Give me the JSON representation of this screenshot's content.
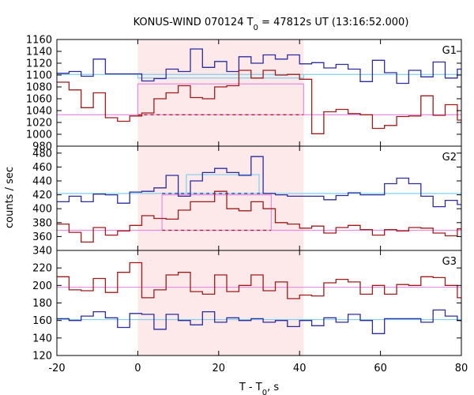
{
  "chart_data": {
    "type": "line",
    "title_main": "KONUS-WIND 070124 T",
    "title_sub": "0",
    "title_rest": " = 47812s UT (13:16:52.000)",
    "xlabel_main": "T - T",
    "xlabel_sub": "0",
    "xlabel_rest": ", s",
    "ylabel": "counts / sec",
    "xlim": [
      -20,
      80
    ],
    "x_ticks": [
      -20,
      0,
      20,
      40,
      60,
      80
    ],
    "x_tick_labels": [
      "-20",
      "0",
      "20",
      "40",
      "60",
      "80"
    ],
    "highlight_region": {
      "x0": 0,
      "x1": 41,
      "color": "#fde8ea"
    },
    "colors": {
      "blue": "#2c2c9c",
      "red": "#9c1c1c",
      "cyan": "#7fd0ef",
      "pink": "#e58de0"
    },
    "bin_edges": [
      -20,
      -17,
      -14,
      -11,
      -8,
      -5,
      -2,
      1,
      4,
      7,
      10,
      13,
      16,
      19,
      22,
      25,
      28,
      31,
      34,
      37,
      40,
      43,
      46,
      49,
      52,
      55,
      58,
      61,
      64,
      67,
      70,
      73,
      76,
      79,
      82
    ],
    "panels": [
      {
        "name": "G1",
        "ylim": [
          980,
          1160
        ],
        "y_ticks": [
          980,
          1000,
          1020,
          1040,
          1060,
          1080,
          1100,
          1120,
          1140,
          1160
        ],
        "y_tick_labels": [
          "980",
          "1000",
          "1020",
          "1040",
          "1060",
          "1080",
          "1100",
          "1120",
          "1140",
          "1160"
        ],
        "blue_values": [
          1103,
          1106,
          1098,
          1127,
          1102,
          1102,
          1102,
          1090,
          1094,
          1110,
          1106,
          1144,
          1113,
          1123,
          1106,
          1131,
          1120,
          1134,
          1127,
          1134,
          1119,
          1121,
          1112,
          1118,
          1110,
          1089,
          1125,
          1104,
          1086,
          1108,
          1097,
          1122,
          1095,
          1110
        ],
        "red_values": [
          1088,
          1075,
          1045,
          1070,
          1028,
          1022,
          1031,
          1036,
          1060,
          1070,
          1082,
          1062,
          1060,
          1080,
          1082,
          1108,
          1095,
          1108,
          1100,
          1101,
          1093,
          1001,
          1038,
          1042,
          1035,
          1033,
          1010,
          1015,
          1030,
          1031,
          1065,
          1032,
          1050,
          1024
        ],
        "blue_bg": 1101,
        "red_bg": 1033,
        "blue_fit": {
          "x0": 0,
          "x1": 41,
          "y": 1095
        },
        "red_fit": {
          "x0": 0,
          "x1": 41,
          "y": 1085
        },
        "red_bg_segments": [
          [
            -20,
            0
          ],
          [
            41,
            82
          ]
        ]
      },
      {
        "name": "G2",
        "ylim": [
          340,
          490
        ],
        "y_ticks": [
          340,
          360,
          380,
          400,
          420,
          440,
          460,
          480
        ],
        "y_tick_labels": [
          "340",
          "360",
          "380",
          "400",
          "420",
          "440",
          "460",
          "480"
        ],
        "blue_values": [
          410,
          418,
          410,
          421,
          420,
          408,
          424,
          425,
          430,
          448,
          418,
          440,
          452,
          458,
          452,
          448,
          475,
          422,
          420,
          418,
          418,
          418,
          413,
          419,
          423,
          420,
          420,
          436,
          444,
          436,
          418,
          403,
          412,
          406
        ],
        "red_values": [
          378,
          366,
          352,
          373,
          362,
          368,
          376,
          390,
          386,
          385,
          398,
          410,
          410,
          425,
          400,
          397,
          410,
          400,
          380,
          378,
          372,
          375,
          365,
          373,
          376,
          370,
          362,
          370,
          368,
          373,
          372,
          365,
          361,
          371
        ],
        "blue_bg": 422,
        "red_bg": 369,
        "blue_fit": {
          "x0": 12,
          "x1": 30,
          "y": 449
        },
        "red_fit": {
          "x0": 6,
          "x1": 33,
          "y": 420
        },
        "red_bg_segments": [
          [
            -20,
            6
          ],
          [
            33,
            82
          ]
        ]
      },
      {
        "name": "G3",
        "ylim": [
          120,
          240
        ],
        "y_ticks": [
          120,
          140,
          160,
          180,
          200,
          220
        ],
        "y_tick_labels": [
          "120",
          "140",
          "160",
          "180",
          "200",
          "220"
        ],
        "blue_values": [
          162,
          160,
          165,
          170,
          163,
          152,
          168,
          167,
          150,
          167,
          160,
          155,
          170,
          158,
          163,
          160,
          162,
          158,
          160,
          153,
          160,
          154,
          163,
          158,
          167,
          160,
          145,
          162,
          162,
          162,
          158,
          172,
          165,
          160
        ],
        "red_values": [
          210,
          195,
          194,
          208,
          192,
          215,
          226,
          186,
          195,
          212,
          215,
          193,
          190,
          212,
          193,
          200,
          212,
          194,
          204,
          185,
          189,
          188,
          203,
          207,
          204,
          190,
          200,
          190,
          201,
          200,
          210,
          209,
          200,
          186
        ],
        "blue_bg": 161,
        "red_bg": 198
      }
    ]
  }
}
